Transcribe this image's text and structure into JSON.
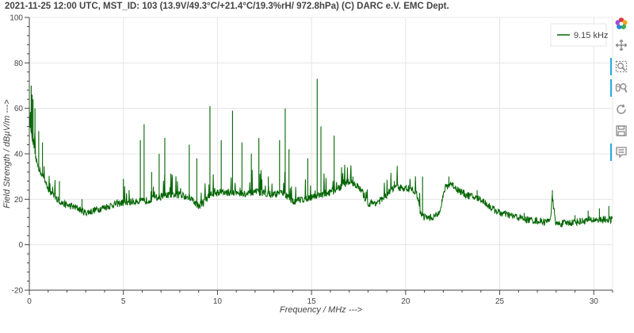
{
  "title": "2021-11-25 12:00  UTC,  MST_ID:  103   (13.9V/49.3°C/+21.4°C/19.3%rH/ 972.8hPa)   (C) DARC e.V. EMC Dept.",
  "colors": {
    "series": "#006400",
    "grid": "#e5e5e5",
    "axis": "#444444",
    "tool_active": "#26aae1"
  },
  "toolbar": {
    "tools": [
      {
        "name": "bokeh-logo-icon",
        "active": false
      },
      {
        "name": "pan-icon",
        "active": false
      },
      {
        "name": "box-zoom-icon",
        "active": true
      },
      {
        "name": "wheel-zoom-icon",
        "active": true
      },
      {
        "name": "reset-icon",
        "active": false
      },
      {
        "name": "save-icon",
        "active": false
      },
      {
        "name": "hover-icon",
        "active": true
      }
    ]
  },
  "chart_data": {
    "type": "line",
    "title": "2021-11-25 12:00  UTC,  MST_ID:  103   (13.9V/49.3°C/+21.4°C/19.3%rH/ 972.8hPa)   (C) DARC e.V. EMC Dept.",
    "xlabel": "Frequency / MHz --->",
    "ylabel": "Field Strength / dBµV/m --->",
    "xlim": [
      0,
      31
    ],
    "ylim": [
      -20,
      100
    ],
    "xticks": [
      0,
      5,
      10,
      15,
      20,
      25,
      30
    ],
    "yticks": [
      -20,
      0,
      20,
      40,
      60,
      80,
      100
    ],
    "grid": true,
    "legend_position": "top-right",
    "series": [
      {
        "name": "9.15 kHz",
        "color": "#006400",
        "baseline": [
          [
            0.0,
            55
          ],
          [
            0.1,
            50
          ],
          [
            0.2,
            44
          ],
          [
            0.3,
            40
          ],
          [
            0.4,
            36
          ],
          [
            0.6,
            32
          ],
          [
            0.8,
            29
          ],
          [
            1.0,
            25
          ],
          [
            1.2,
            22
          ],
          [
            1.5,
            20
          ],
          [
            1.8,
            18
          ],
          [
            2.2,
            17
          ],
          [
            2.6,
            16
          ],
          [
            3.0,
            14
          ],
          [
            3.4,
            15
          ],
          [
            3.8,
            16
          ],
          [
            4.2,
            17
          ],
          [
            4.6,
            18
          ],
          [
            5.0,
            18.5
          ],
          [
            5.5,
            19
          ],
          [
            6.0,
            19
          ],
          [
            6.5,
            20
          ],
          [
            7.0,
            21
          ],
          [
            7.5,
            22
          ],
          [
            8.0,
            22
          ],
          [
            8.5,
            21
          ],
          [
            9.0,
            17
          ],
          [
            9.3,
            19
          ],
          [
            9.6,
            22
          ],
          [
            10.0,
            23
          ],
          [
            10.5,
            23
          ],
          [
            11.0,
            23
          ],
          [
            11.5,
            22
          ],
          [
            12.0,
            23
          ],
          [
            12.5,
            23
          ],
          [
            13.0,
            22
          ],
          [
            13.5,
            23
          ],
          [
            14.0,
            19
          ],
          [
            14.5,
            20
          ],
          [
            15.0,
            21
          ],
          [
            15.5,
            22
          ],
          [
            16.0,
            23
          ],
          [
            16.5,
            25
          ],
          [
            16.8,
            27
          ],
          [
            17.1,
            28
          ],
          [
            17.4,
            26
          ],
          [
            17.7,
            23
          ],
          [
            18.0,
            18
          ],
          [
            18.4,
            18.5
          ],
          [
            18.8,
            20
          ],
          [
            19.1,
            23
          ],
          [
            19.4,
            25
          ],
          [
            19.7,
            25
          ],
          [
            20.0,
            25
          ],
          [
            20.4,
            24
          ],
          [
            20.6,
            22
          ],
          [
            20.8,
            14
          ],
          [
            21.0,
            12
          ],
          [
            21.4,
            12
          ],
          [
            21.7,
            13
          ],
          [
            21.9,
            18
          ],
          [
            22.1,
            25
          ],
          [
            22.4,
            27
          ],
          [
            22.8,
            24
          ],
          [
            23.2,
            22
          ],
          [
            23.6,
            21
          ],
          [
            24.0,
            20
          ],
          [
            24.3,
            18
          ],
          [
            24.6,
            16
          ],
          [
            25.0,
            14
          ],
          [
            25.5,
            13
          ],
          [
            26.0,
            12
          ],
          [
            26.5,
            11
          ],
          [
            27.0,
            10.5
          ],
          [
            27.5,
            10
          ],
          [
            27.7,
            12
          ],
          [
            27.8,
            21
          ],
          [
            27.9,
            14
          ],
          [
            28.0,
            9
          ],
          [
            28.5,
            9.5
          ],
          [
            29.0,
            10
          ],
          [
            29.5,
            10.5
          ],
          [
            30.0,
            11
          ],
          [
            30.5,
            11
          ],
          [
            31.0,
            11
          ]
        ],
        "peaks": [
          [
            0.1,
            70
          ],
          [
            0.15,
            66
          ],
          [
            0.2,
            64
          ],
          [
            0.3,
            60
          ],
          [
            0.5,
            50
          ],
          [
            0.7,
            45
          ],
          [
            1.6,
            28
          ],
          [
            2.8,
            20
          ],
          [
            5.0,
            29
          ],
          [
            5.3,
            24
          ],
          [
            5.9,
            46
          ],
          [
            6.1,
            53
          ],
          [
            6.5,
            32
          ],
          [
            6.9,
            40
          ],
          [
            7.2,
            47
          ],
          [
            7.6,
            30
          ],
          [
            8.5,
            44
          ],
          [
            8.9,
            38
          ],
          [
            9.6,
            61
          ],
          [
            10.2,
            46
          ],
          [
            10.8,
            59
          ],
          [
            11.3,
            45
          ],
          [
            11.8,
            40
          ],
          [
            12.2,
            47
          ],
          [
            12.7,
            30
          ],
          [
            13.3,
            46
          ],
          [
            13.6,
            60
          ],
          [
            13.8,
            42
          ],
          [
            14.8,
            38
          ],
          [
            15.3,
            73
          ],
          [
            15.5,
            52
          ],
          [
            16.2,
            48
          ],
          [
            17.2,
            30
          ],
          [
            19.4,
            28
          ],
          [
            20.9,
            30
          ],
          [
            22.3,
            30
          ],
          [
            23.8,
            24
          ],
          [
            25.3,
            15
          ],
          [
            26.3,
            14
          ],
          [
            27.8,
            24
          ],
          [
            29.0,
            13
          ],
          [
            29.7,
            15
          ],
          [
            30.3,
            16
          ],
          [
            30.8,
            17
          ]
        ]
      }
    ]
  }
}
